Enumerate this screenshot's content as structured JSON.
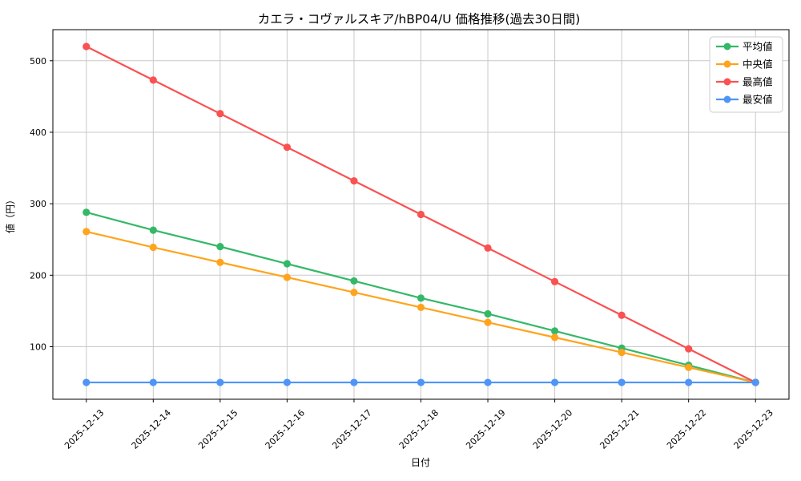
{
  "chart_data": {
    "type": "line",
    "title": "カエラ・コヴァルスキア/hBP04/U 価格推移(過去30日間)",
    "xlabel": "日付",
    "ylabel": "値（円）",
    "categories": [
      "2025-12-13",
      "2025-12-14",
      "2025-12-15",
      "2025-12-16",
      "2025-12-17",
      "2025-12-18",
      "2025-12-19",
      "2025-12-20",
      "2025-12-21",
      "2025-12-22",
      "2025-12-23"
    ],
    "series": [
      {
        "name": "平均値",
        "color": "#34b868",
        "values": [
          288,
          263,
          240,
          216,
          192,
          168,
          146,
          122,
          98,
          74,
          50
        ]
      },
      {
        "name": "中央値",
        "color": "#ffa41c",
        "values": [
          261,
          239,
          218,
          197,
          176,
          155,
          134,
          113,
          92,
          71,
          50
        ]
      },
      {
        "name": "最高値",
        "color": "#fa5151",
        "values": [
          520,
          473,
          426,
          379,
          332,
          285,
          238,
          191,
          144,
          97,
          50
        ]
      },
      {
        "name": "最安値",
        "color": "#4e95f7",
        "values": [
          50,
          50,
          50,
          50,
          50,
          50,
          50,
          50,
          50,
          50,
          50
        ]
      }
    ],
    "yticks": [
      100,
      200,
      300,
      400,
      500
    ],
    "ylim": [
      26.5,
      543.5
    ],
    "grid": true,
    "legend_position": "upper right",
    "marker": "circle",
    "line_width": 2.2,
    "marker_radius": 4.6
  }
}
